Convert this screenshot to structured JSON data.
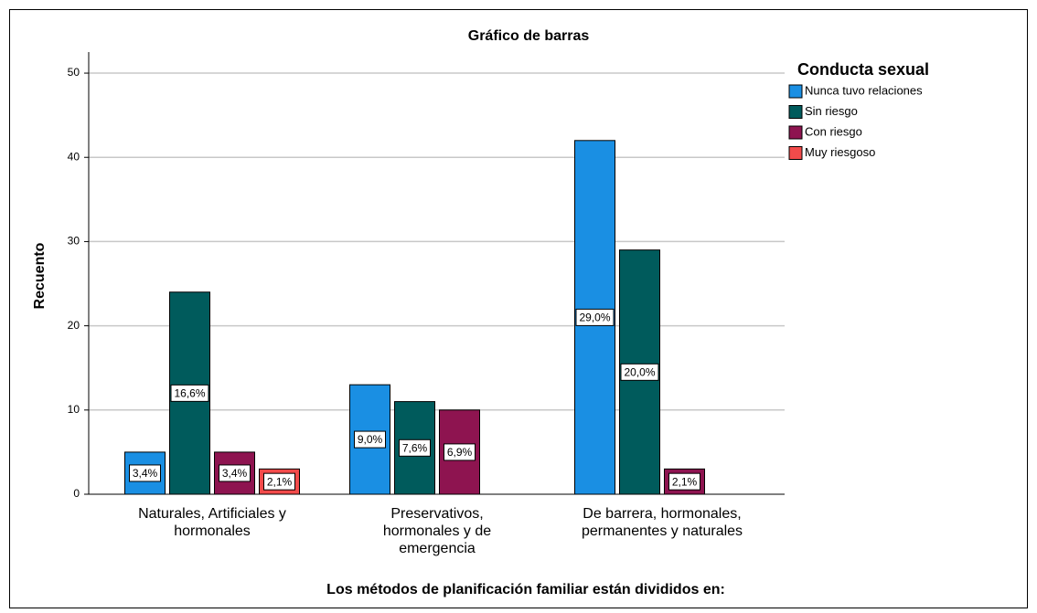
{
  "chart_data": {
    "type": "bar",
    "title": "Gráfico de barras",
    "y_label": "Recuento",
    "x_label": "Los métodos de planificación familiar están divididos en:",
    "legend_title": "Conducta sexual",
    "categories": [
      [
        "Naturales, Artificiales y",
        "hormonales"
      ],
      [
        "Preservativos,",
        "hormonales y de",
        "emergencia"
      ],
      [
        "De barrera, hormonales,",
        "permanentes y naturales"
      ]
    ],
    "series": [
      {
        "name": "Nunca tuvo relaciones",
        "color": "#1a8fe3",
        "values": [
          5,
          13,
          42
        ],
        "labels": [
          "3,4%",
          "9,0%",
          "29,0%"
        ]
      },
      {
        "name": "Sin riesgo",
        "color": "#005b5c",
        "values": [
          24,
          11,
          29
        ],
        "labels": [
          "16,6%",
          "7,6%",
          "20,0%"
        ]
      },
      {
        "name": "Con riesgo",
        "color": "#8e1450",
        "values": [
          5,
          10,
          3
        ],
        "labels": [
          "3,4%",
          "6,9%",
          "2,1%"
        ]
      },
      {
        "name": "Muy riesgoso",
        "color": "#f24b4b",
        "values": [
          3,
          null,
          null
        ],
        "labels": [
          "2,1%",
          null,
          null
        ]
      }
    ],
    "ylim": [
      0,
      52.5
    ],
    "yticks": [
      0,
      10,
      20,
      30,
      40,
      50
    ],
    "grid": true,
    "legend": "right"
  }
}
